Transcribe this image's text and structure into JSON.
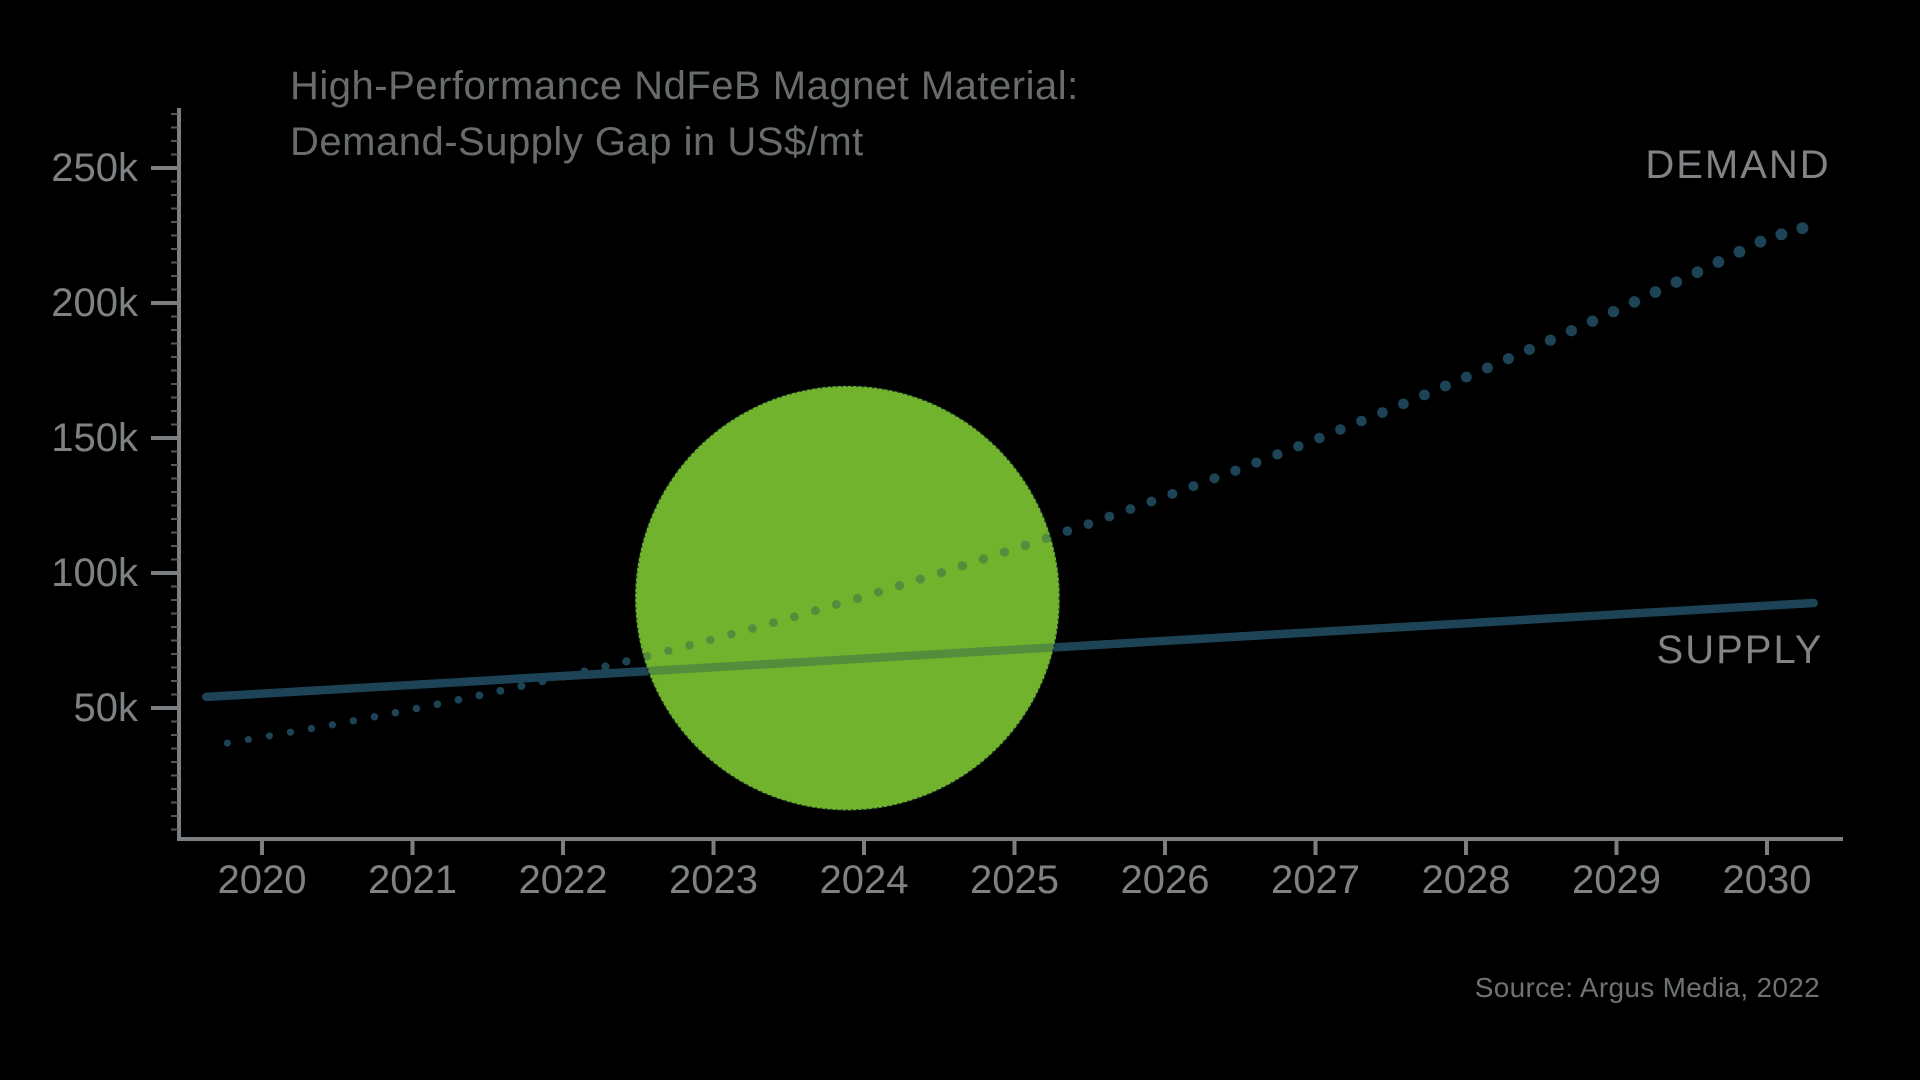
{
  "page": {
    "background_color": "#000000"
  },
  "chart_data": {
    "type": "line",
    "title_lines": [
      "High-Performance NdFeB Magnet Material:",
      "Demand-Supply Gap in US$/mt"
    ],
    "ylabel": "US$/mt",
    "y_tick_labels": [
      "50k",
      "100k",
      "150k",
      "200k",
      "250k"
    ],
    "y_tick_values_k": [
      50,
      100,
      150,
      200,
      250
    ],
    "y_minor_tick_step_k": 5,
    "x_tick_labels": [
      "2020",
      "2021",
      "2022",
      "2023",
      "2024",
      "2025",
      "2026",
      "2027",
      "2028",
      "2029",
      "2030"
    ],
    "x_tick_years": [
      2020,
      2021,
      2022,
      2023,
      2024,
      2025,
      2026,
      2027,
      2028,
      2029,
      2030
    ],
    "axis_ranges": {
      "x_years": [
        2019.6,
        2030.45
      ],
      "y_k": [
        0,
        272
      ]
    },
    "grid": "off",
    "legend_position": "inline-right",
    "colors": {
      "line_teal": "#1d4456",
      "gap_green": "#72b32e",
      "axis_gray": "#7b7f81",
      "minor_tick_gray": "#54585a"
    },
    "labels": {
      "demand": "DEMAND",
      "supply": "SUPPLY"
    },
    "series": [
      {
        "name": "DEMAND",
        "style": "dotted",
        "color": "#1d4456",
        "points": [
          [
            2019.77,
            37.0
          ],
          [
            2020,
            39.2
          ],
          [
            2020.5,
            44.1
          ],
          [
            2021,
            49.5
          ],
          [
            2021.5,
            55.3
          ],
          [
            2022,
            61.6
          ],
          [
            2022.5,
            68.3
          ],
          [
            2023,
            75.5
          ],
          [
            2023.5,
            83.2
          ],
          [
            2024,
            91.3
          ],
          [
            2024.5,
            99.9
          ],
          [
            2025,
            108.9
          ],
          [
            2025.5,
            118.3
          ],
          [
            2026,
            128.3
          ],
          [
            2026.5,
            138.6
          ],
          [
            2027,
            149.4
          ],
          [
            2027.5,
            160.7
          ],
          [
            2028,
            172.5
          ],
          [
            2028.5,
            184.7
          ],
          [
            2029,
            197.3
          ],
          [
            2029.5,
            210.4
          ],
          [
            2030,
            223.9
          ],
          [
            2030.31,
            228.9
          ]
        ]
      },
      {
        "name": "SUPPLY",
        "style": "solid",
        "color": "#1d4456",
        "points": [
          [
            2019.63,
            54.1
          ],
          [
            2030.31,
            88.9
          ]
        ]
      }
    ],
    "annotations": {
      "gap_circle": {
        "meaning": "demand-supply gap highlight",
        "color": "#72b32e",
        "center_year": 2023.89,
        "center_value_k": 90.7,
        "radius_years": 1.41
      }
    },
    "source": "Source: Argus Media, 2022"
  }
}
